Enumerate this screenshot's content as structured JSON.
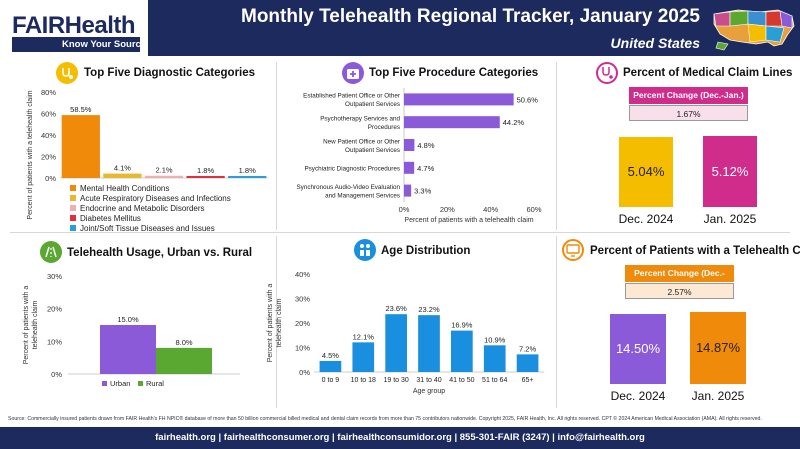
{
  "header": {
    "logo_fair": "FAIR",
    "logo_health": "Health",
    "logo_tagline": "Know Your Source",
    "title": "Monthly Telehealth Regional Tracker, January 2025",
    "subtitle": "United States"
  },
  "colors": {
    "navy": "#1c2a5e",
    "orange": "#f08a0a",
    "purple": "#8a5ad8",
    "green": "#5aa832",
    "blue": "#1a8fe0",
    "magenta": "#d02c8c",
    "yellow": "#f5bd00",
    "pink": "#f0b0b0",
    "red": "#e03040",
    "cyan": "#2a9fd6",
    "gold": "#e8b830"
  },
  "diagnostic": {
    "title": "Top Five Diagnostic Categories",
    "chart_data": {
      "type": "bar",
      "title": "Top Five Diagnostic Categories",
      "ylabel": "Percent of patients with a telehealth claim",
      "ylim": [
        0,
        80
      ],
      "yticks": [
        "0%",
        "20%",
        "40%",
        "60%",
        "80%"
      ],
      "categories": [
        "Mental Health Conditions",
        "Acute Respiratory Diseases and Infections",
        "Endocrine and Metabolic Disorders",
        "Diabetes Mellitus",
        "Joint/Soft Tissue Diseases and Issues"
      ],
      "values": [
        58.5,
        4.1,
        2.1,
        1.8,
        1.8
      ],
      "labels": [
        "58.5%",
        "4.1%",
        "2.1%",
        "1.8%",
        "1.8%"
      ],
      "colors": [
        "#f08a0a",
        "#e8b830",
        "#f0b0b0",
        "#e03040",
        "#2a9fd6"
      ]
    }
  },
  "procedure": {
    "title": "Top Five Procedure Categories",
    "chart_data": {
      "type": "bar",
      "orientation": "horizontal",
      "title": "Top Five Procedure Categories",
      "xlabel": "Percent of patients with a telehealth claim",
      "xlim": [
        0,
        60
      ],
      "xticks": [
        "0%",
        "20%",
        "40%",
        "60%"
      ],
      "categories": [
        [
          "Established Patient Office or Other",
          "Outpatient Services"
        ],
        [
          "Psychotherapy Services and",
          "Procedures"
        ],
        [
          "New Patient Office or Other",
          "Outpatient Services"
        ],
        [
          "Psychiatric Diagnostic Procedures"
        ],
        [
          "Synchronous Audio-Video Evaluation",
          "and Management Services"
        ]
      ],
      "values": [
        50.6,
        44.2,
        4.8,
        4.7,
        3.3
      ],
      "labels": [
        "50.6%",
        "44.2%",
        "4.8%",
        "4.7%",
        "3.3%"
      ]
    }
  },
  "claim_lines": {
    "title": "Percent of Medical Claim Lines",
    "change_label": "Percent Change (Dec.-Jan.)",
    "change_value": "1.67%",
    "chart_data": {
      "type": "bar",
      "categories": [
        "Dec. 2024",
        "Jan. 2025"
      ],
      "values": [
        5.04,
        5.12
      ],
      "labels": [
        "5.04%",
        "5.12%"
      ]
    }
  },
  "urban_rural": {
    "title": "Telehealth Usage, Urban vs. Rural",
    "chart_data": {
      "type": "bar",
      "ylabel": "Percent of patients with a telehealth claim",
      "ylim": [
        0,
        30
      ],
      "yticks": [
        "0%",
        "10%",
        "20%",
        "30%"
      ],
      "categories": [
        "Urban",
        "Rural"
      ],
      "values": [
        15.0,
        8.0
      ],
      "labels": [
        "15.0%",
        "8.0%"
      ]
    }
  },
  "age": {
    "title": "Age Distribution",
    "chart_data": {
      "type": "bar",
      "ylabel": "Percent of patients with a telehealth claim",
      "xlabel": "Age group",
      "ylim": [
        0,
        40
      ],
      "yticks": [
        "0%",
        "10%",
        "20%",
        "30%",
        "40%"
      ],
      "categories": [
        "0 to 9",
        "10 to 18",
        "19 to 30",
        "31 to 40",
        "41 to 50",
        "51 to 64",
        "65+"
      ],
      "values": [
        4.5,
        12.1,
        23.6,
        23.2,
        16.9,
        10.9,
        7.2
      ],
      "labels": [
        "4.5%",
        "12.1%",
        "23.6%",
        "23.2%",
        "16.9%",
        "10.9%",
        "7.2%"
      ]
    }
  },
  "patients": {
    "title": "Percent of Patients with a Telehealth Claim",
    "change_label": "Percent Change (Dec.-Jan.)",
    "change_value": "2.57%",
    "chart_data": {
      "type": "bar",
      "categories": [
        "Dec. 2024",
        "Jan. 2025"
      ],
      "values": [
        14.5,
        14.87
      ],
      "labels": [
        "14.50%",
        "14.87%"
      ]
    }
  },
  "source": "Source: Commercially insured patients drawn from FAIR Health's FH NPIC® database of more than 50 billion commercial billed medical and dental claim records from more than 75 contributors nationwide. Copyright 2025, FAIR Health, Inc. All rights reserved. CPT © 2024 American Medical Association (AMA). All rights reserved.",
  "footer": "fairhealth.org  |  fairhealthconsumer.org  |  fairhealthconsumidor.org  |  855-301-FAIR (3247)  |  info@fairhealth.org"
}
